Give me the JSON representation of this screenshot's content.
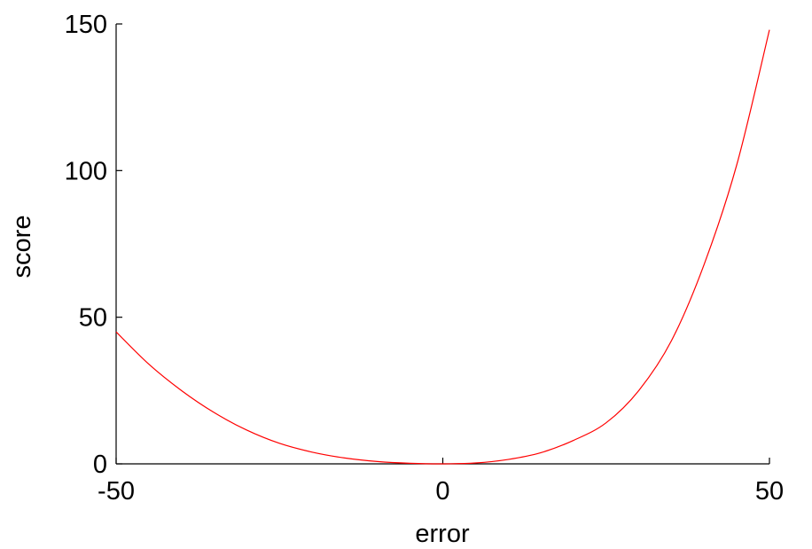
{
  "chart_data": {
    "type": "line",
    "title": "",
    "xlabel": "error",
    "ylabel": "score",
    "xlim": [
      -50,
      50
    ],
    "ylim": [
      0,
      150
    ],
    "xticks": [
      -50,
      0,
      50
    ],
    "yticks": [
      0,
      50,
      100,
      150
    ],
    "grid": false,
    "series": [
      {
        "name": "score",
        "color": "#ff0000",
        "x": [
          -50,
          -45,
          -40,
          -35,
          -30,
          -25,
          -20,
          -15,
          -10,
          -5,
          0,
          5,
          10,
          15,
          20,
          25,
          30,
          35,
          40,
          45,
          50
        ],
        "y": [
          45,
          34,
          25,
          17.5,
          11.5,
          7,
          4,
          2,
          0.8,
          0.2,
          0,
          0.3,
          1.5,
          3.8,
          8,
          14,
          25,
          42,
          68,
          102,
          148
        ]
      }
    ]
  }
}
